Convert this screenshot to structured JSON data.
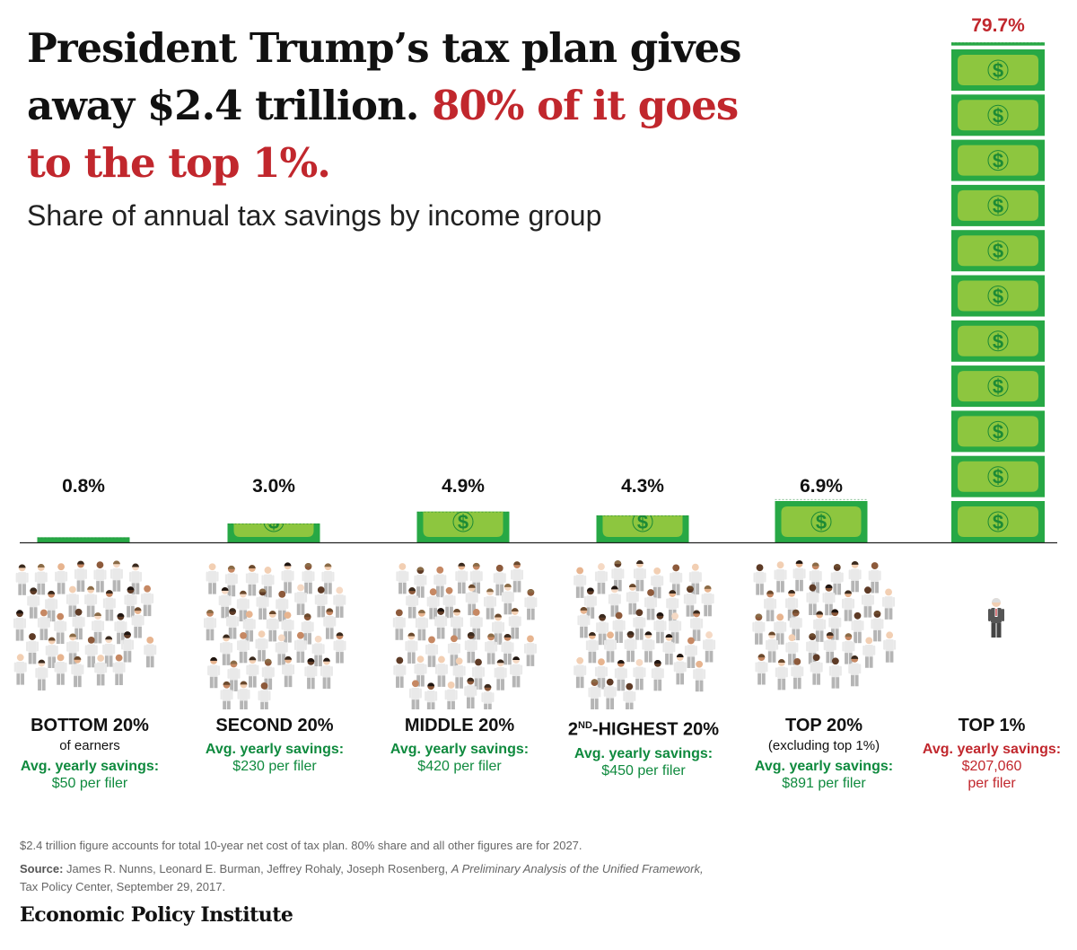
{
  "title": {
    "line1": "President Trump’s tax plan gives",
    "line2": "away $2.4 trillion.",
    "highlight1": "80% of it goes",
    "highlight2": "to the top 1%."
  },
  "subtitle": "Share of annual tax savings by income group",
  "colors": {
    "bill_green": "#27a845",
    "bill_light": "#8dc63f",
    "bill_border": "#1d8a35",
    "accent_red": "#c1272d",
    "savings_green": "#0f8a3e",
    "people_shirt": "#e9e9e9",
    "people_pants": "#b5b5b5"
  },
  "chart_data": {
    "type": "bar",
    "title": "Share of annual tax savings by income group",
    "categories": [
      "BOTTOM 20%",
      "SECOND 20%",
      "MIDDLE 20%",
      "2ND-HIGHEST 20%",
      "TOP 20%",
      "TOP 1%"
    ],
    "values": [
      0.8,
      3.0,
      4.9,
      4.3,
      6.9,
      79.7
    ],
    "value_labels": [
      "0.8%",
      "3.0%",
      "4.9%",
      "4.3%",
      "6.9%",
      "79.7%"
    ],
    "unit": "%",
    "ylim": [
      0,
      80
    ],
    "label_colors": [
      "#111111",
      "#111111",
      "#111111",
      "#111111",
      "#111111",
      "#c1272d"
    ]
  },
  "categories": [
    {
      "name": "BOTTOM 20%",
      "sub": "of earners",
      "savings_label": "Avg. yearly savings:",
      "savings_value": "$50 per filer",
      "savings_value2": ""
    },
    {
      "name": "SECOND 20%",
      "sub": "",
      "savings_label": "Avg. yearly savings:",
      "savings_value": "$230 per filer",
      "savings_value2": ""
    },
    {
      "name": "MIDDLE 20%",
      "sub": "",
      "savings_label": "Avg. yearly savings:",
      "savings_value": "$420 per filer",
      "savings_value2": ""
    },
    {
      "name_prefix": "2",
      "name_sup": "ND",
      "name_rest": "-HIGHEST 20%",
      "sub": "",
      "savings_label": "Avg. yearly savings:",
      "savings_value": "$450 per filer",
      "savings_value2": ""
    },
    {
      "name": "TOP 20%",
      "sub": "(excluding top 1%)",
      "savings_label": "Avg. yearly savings:",
      "savings_value": "$891 per filer",
      "savings_value2": ""
    },
    {
      "name": "TOP 1%",
      "sub": "",
      "savings_label": "Avg. yearly savings:",
      "savings_value": "$207,060",
      "savings_value2": "per filer"
    }
  ],
  "people_counts": [
    34,
    38,
    40,
    38,
    34,
    1
  ],
  "footer": {
    "note": "$2.4 trillion figure accounts for total 10-year net cost of tax plan. 80% share and all other figures are for 2027.",
    "source_label": "Source:",
    "source_authors": "James R. Nunns, Leonard E. Burman, Jeffrey Rohaly, Joseph Rosenberg,",
    "source_title": "A Preliminary Analysis of the Unified Framework,",
    "source_publisher": "Tax Policy Center, September 29, 2017.",
    "brand": "Economic Policy Institute"
  },
  "icons": {
    "bill": "dollar-bill-icon",
    "person": "person-icon"
  }
}
